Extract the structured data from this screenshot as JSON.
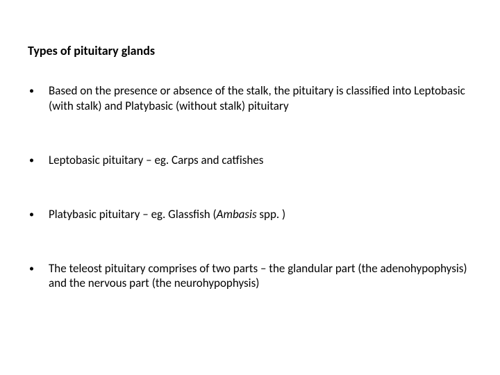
{
  "colors": {
    "background": "#ffffff",
    "text": "#000000"
  },
  "typography": {
    "font_family": "Calibri",
    "title_size_pt": 18,
    "body_size_pt": 17,
    "title_weight": "bold"
  },
  "title": "Types of pituitary glands",
  "bullets": [
    {
      "text": "Based on the presence or absence of the stalk, the pituitary is classified into Leptobasic (with stalk) and  Platybasic (without stalk) pituitary"
    },
    {
      "text": "Leptobasic pituitary – eg. Carps and catfishes"
    },
    {
      "prefix": "Platybasic pituitary – eg. Glassfish (",
      "italic": "Ambasis ",
      "suffix": "spp. )"
    },
    {
      "text": "The teleost pituitary comprises of two parts – the glandular part (the adenohypophysis) and the nervous part (the neurohypophysis)"
    }
  ]
}
